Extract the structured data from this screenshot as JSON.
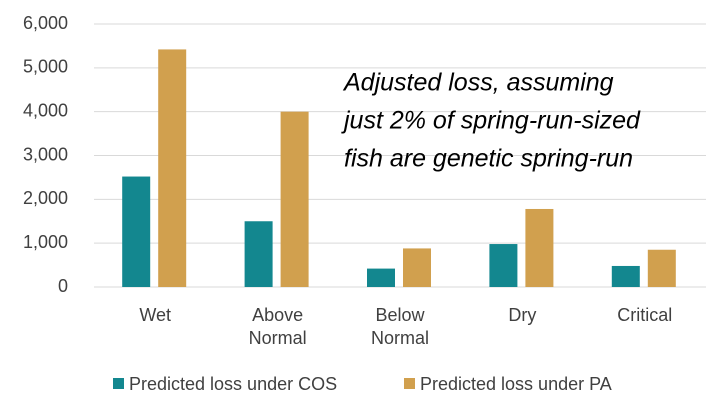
{
  "chart_data": {
    "type": "bar",
    "categories": [
      "Wet",
      "Above Normal",
      "Below Normal",
      "Dry",
      "Critical"
    ],
    "series": [
      {
        "name": "Predicted loss under COS",
        "color": "#13878f",
        "values": [
          2520,
          1500,
          420,
          980,
          480
        ]
      },
      {
        "name": "Predicted loss under PA",
        "color": "#d1a04e",
        "values": [
          5420,
          4000,
          880,
          1780,
          850
        ]
      }
    ],
    "ylim": [
      0,
      6000
    ],
    "yticks": [
      0,
      {
        "value": 1000,
        "label": "1,000"
      },
      {
        "value": 2000,
        "label": "2,000"
      },
      {
        "value": 3000,
        "label": "3,000"
      },
      {
        "value": 4000,
        "label": "4,000"
      },
      {
        "value": 5000,
        "label": "5,000"
      },
      {
        "value": 6000,
        "label": "6,000"
      }
    ],
    "grid": true,
    "legend": "bottom",
    "annotation": [
      "Adjusted loss, assuming",
      "just 2% of spring-run-sized",
      "fish are genetic spring-run"
    ]
  }
}
